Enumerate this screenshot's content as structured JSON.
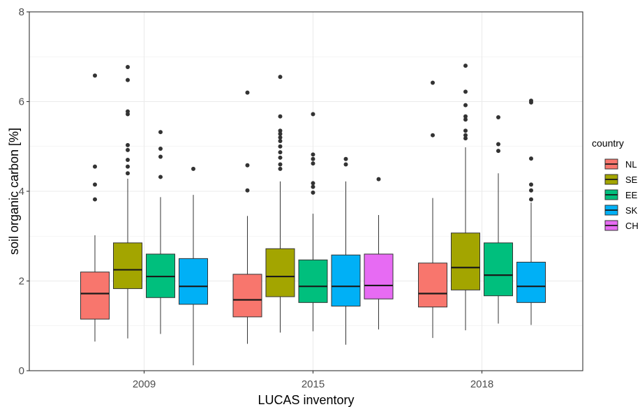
{
  "chart_data": {
    "type": "boxplot",
    "title": "",
    "xlabel": "LUCAS inventory",
    "ylabel": "soil organic carbon [%]",
    "ylim": [
      0,
      8
    ],
    "yticks": [
      "0",
      "2",
      "4",
      "6",
      "8"
    ],
    "categories": [
      "2009",
      "2015",
      "2018"
    ],
    "grid": true,
    "legend": {
      "title": "country",
      "position": "right",
      "entries": [
        "NL",
        "SE",
        "EE",
        "SK",
        "CH"
      ]
    },
    "colors": {
      "NL": "#F8766D",
      "SE": "#A3A500",
      "EE": "#00BF7D",
      "SK": "#00B0F6",
      "CH": "#E76BF3"
    },
    "series": [
      {
        "name": "NL",
        "boxes": [
          {
            "category": "2009",
            "min": 0.65,
            "q1": 1.15,
            "median": 1.72,
            "q3": 2.2,
            "max": 3.02,
            "outliers": [
              3.82,
              4.15,
              4.55,
              6.58
            ]
          },
          {
            "category": "2015",
            "min": 0.6,
            "q1": 1.2,
            "median": 1.58,
            "q3": 2.15,
            "max": 3.45,
            "outliers": [
              4.02,
              4.58,
              6.2
            ]
          },
          {
            "category": "2018",
            "min": 0.73,
            "q1": 1.42,
            "median": 1.72,
            "q3": 2.4,
            "max": 3.85,
            "outliers": [
              5.25,
              6.42
            ]
          }
        ]
      },
      {
        "name": "SE",
        "boxes": [
          {
            "category": "2009",
            "min": 0.72,
            "q1": 1.83,
            "median": 2.25,
            "q3": 2.85,
            "max": 4.28,
            "outliers": [
              4.4,
              4.55,
              4.7,
              4.92,
              5.03,
              5.72,
              5.78,
              6.48,
              6.77
            ]
          },
          {
            "category": "2015",
            "min": 0.85,
            "q1": 1.65,
            "median": 2.1,
            "q3": 2.72,
            "max": 4.22,
            "outliers": [
              4.5,
              4.6,
              4.75,
              4.87,
              5.0,
              5.12,
              5.2,
              5.28,
              5.35,
              5.67,
              6.55
            ]
          },
          {
            "category": "2018",
            "min": 0.9,
            "q1": 1.8,
            "median": 2.3,
            "q3": 3.07,
            "max": 4.98,
            "outliers": [
              5.18,
              5.25,
              5.35,
              5.6,
              5.67,
              5.92,
              6.22,
              6.8
            ]
          }
        ]
      },
      {
        "name": "EE",
        "boxes": [
          {
            "category": "2009",
            "min": 0.82,
            "q1": 1.63,
            "median": 2.1,
            "q3": 2.6,
            "max": 3.87,
            "outliers": [
              4.32,
              4.77,
              4.95,
              5.32
            ]
          },
          {
            "category": "2015",
            "min": 0.88,
            "q1": 1.52,
            "median": 1.88,
            "q3": 2.47,
            "max": 3.5,
            "outliers": [
              3.97,
              4.1,
              4.18,
              4.62,
              4.72,
              4.82,
              5.72
            ]
          },
          {
            "category": "2018",
            "min": 1.05,
            "q1": 1.67,
            "median": 2.13,
            "q3": 2.85,
            "max": 4.4,
            "outliers": [
              4.9,
              5.05,
              5.65
            ]
          }
        ]
      },
      {
        "name": "SK",
        "boxes": [
          {
            "category": "2009",
            "min": 0.12,
            "q1": 1.48,
            "median": 1.88,
            "q3": 2.5,
            "max": 3.92,
            "outliers": [
              4.5
            ]
          },
          {
            "category": "2015",
            "min": 0.58,
            "q1": 1.44,
            "median": 1.88,
            "q3": 2.58,
            "max": 4.22,
            "outliers": [
              4.6,
              4.72
            ]
          },
          {
            "category": "2018",
            "min": 1.02,
            "q1": 1.52,
            "median": 1.88,
            "q3": 2.42,
            "max": 3.75,
            "outliers": [
              3.82,
              4.02,
              4.15,
              4.73,
              5.98,
              6.02
            ]
          }
        ]
      },
      {
        "name": "CH",
        "boxes": [
          {
            "category": "2015",
            "min": 0.92,
            "q1": 1.6,
            "median": 1.9,
            "q3": 2.6,
            "max": 3.47,
            "outliers": [
              4.27
            ]
          }
        ]
      }
    ]
  }
}
